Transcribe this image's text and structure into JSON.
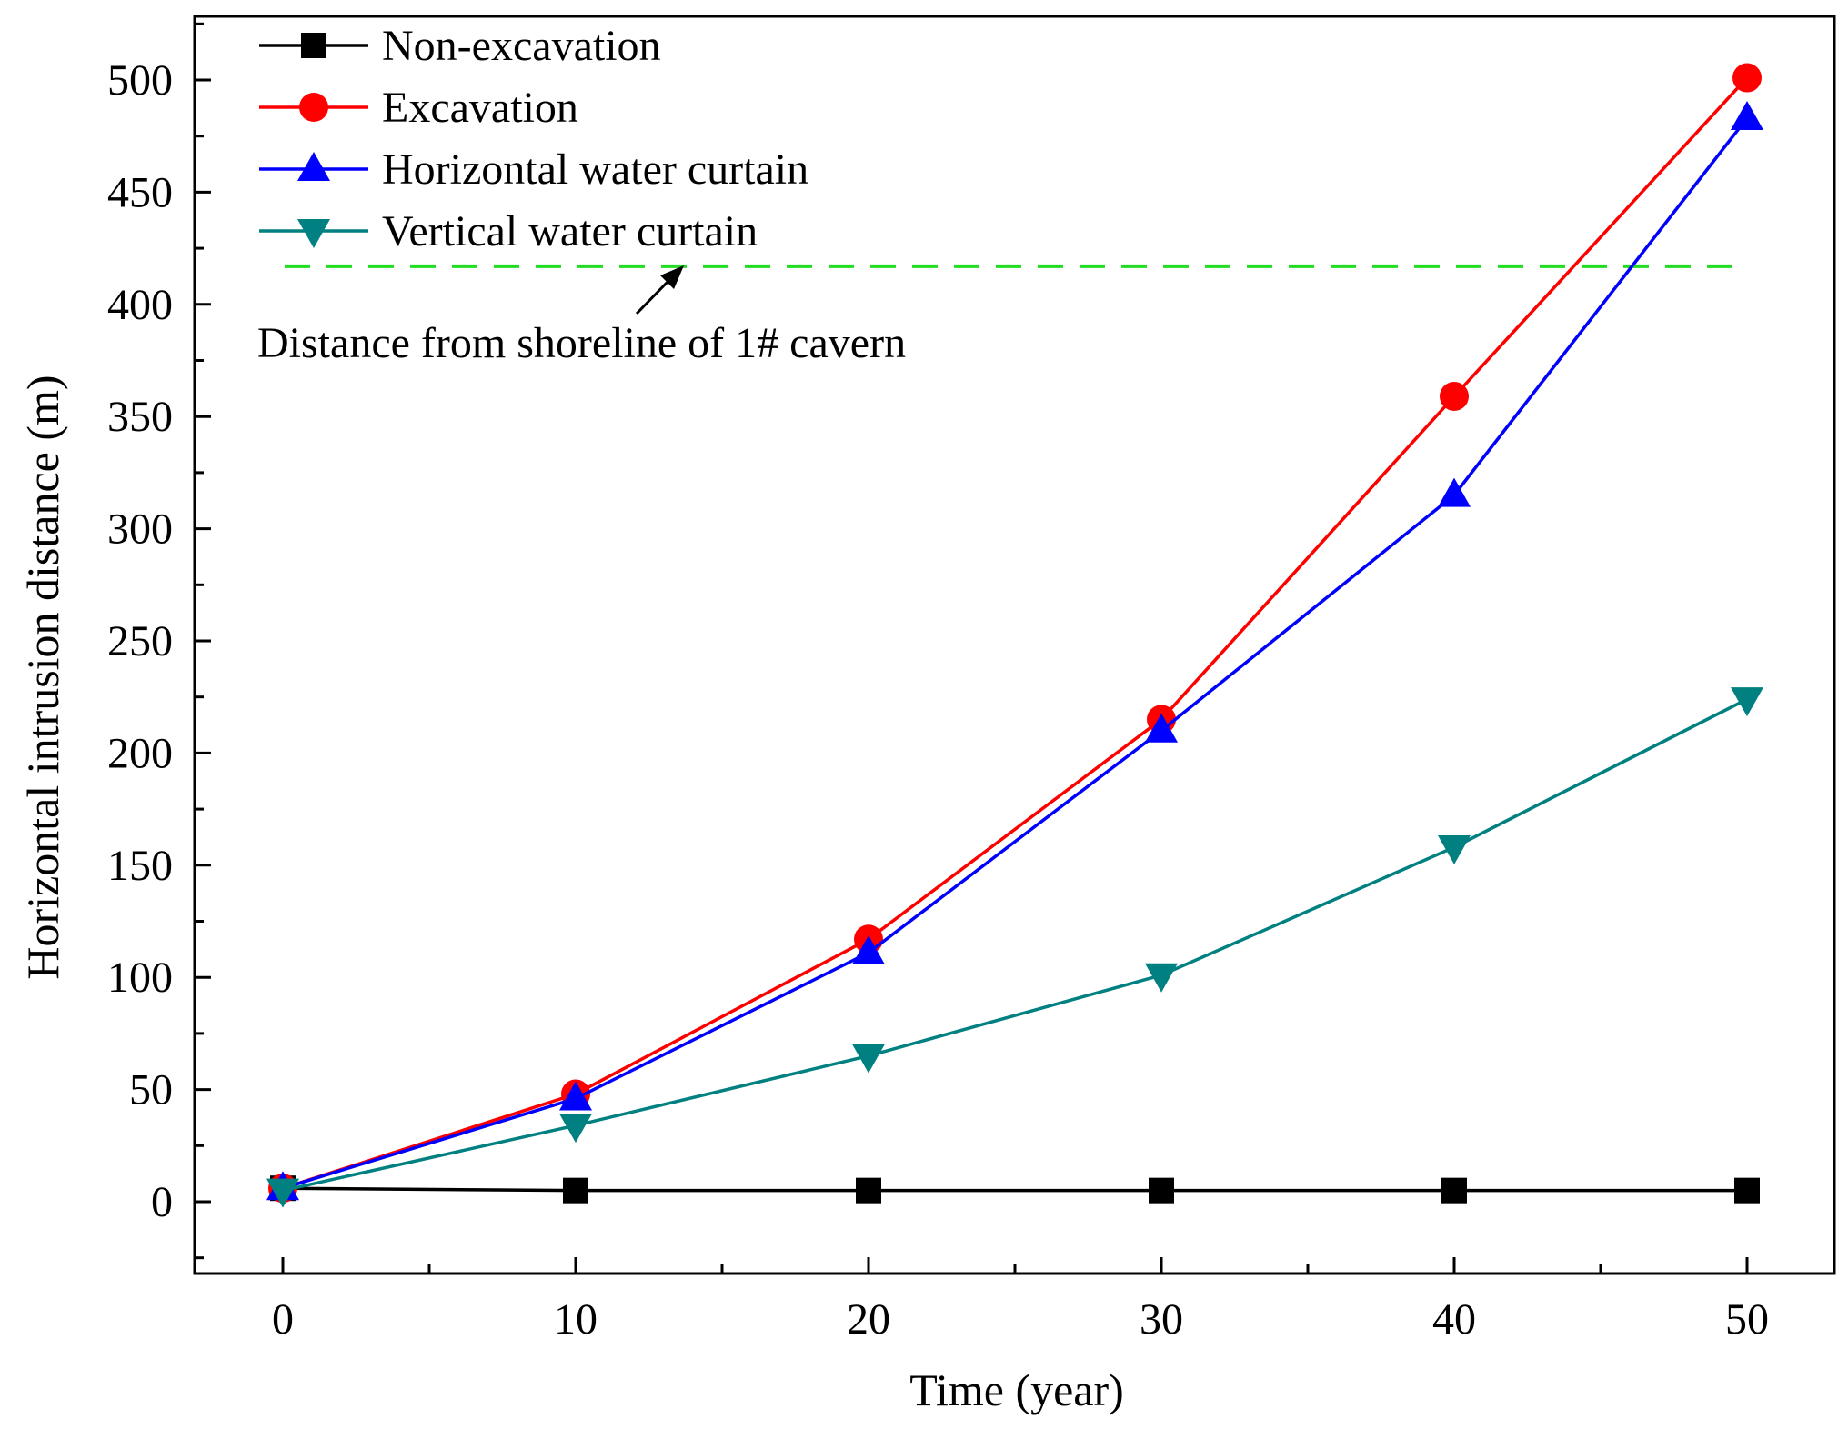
{
  "chart_data": {
    "type": "line",
    "title": "",
    "xlabel": "Time (year)",
    "ylabel": "Horizontal intrusion distance (m)",
    "xlim": [
      -3,
      52
    ],
    "ylim": [
      -25,
      530
    ],
    "x": [
      0,
      10,
      20,
      30,
      40,
      50
    ],
    "x_ticks": [
      0,
      10,
      20,
      30,
      40,
      50
    ],
    "y_ticks": [
      0,
      50,
      100,
      150,
      200,
      250,
      300,
      350,
      400,
      450,
      500
    ],
    "grid": false,
    "legend_position": "top-left",
    "series": [
      {
        "name": "Non-excavation",
        "color": "#000000",
        "marker": "square",
        "values": [
          6,
          5,
          5,
          5,
          5,
          5
        ]
      },
      {
        "name": "Excavation",
        "color": "#ff0000",
        "marker": "circle",
        "values": [
          6,
          48,
          117,
          215,
          359,
          501
        ]
      },
      {
        "name": "Horizontal water curtain",
        "color": "#0000ff",
        "marker": "triangle-up",
        "values": [
          6,
          46,
          111,
          210,
          315,
          483
        ]
      },
      {
        "name": "Vertical water curtain",
        "color": "#008080",
        "marker": "triangle-down",
        "values": [
          5,
          34,
          65,
          101,
          158,
          224
        ]
      }
    ],
    "reference_line": {
      "value": 417,
      "color": "#22dd22",
      "style": "dashed"
    },
    "annotation": {
      "text": "Distance from shoreline of 1# cavern",
      "x": 14,
      "y": 417
    }
  }
}
